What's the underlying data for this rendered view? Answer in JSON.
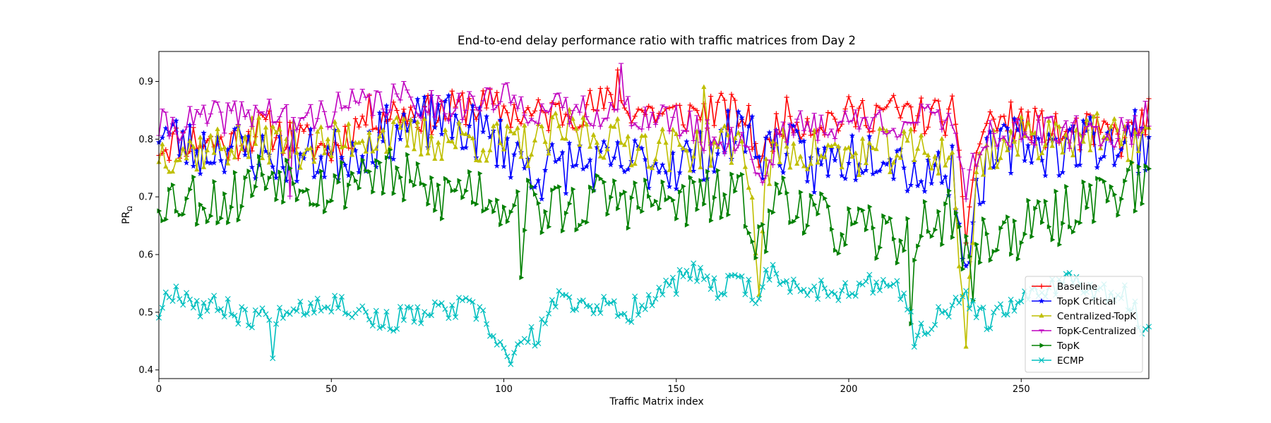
{
  "chart_data": {
    "type": "line",
    "title": "End-to-end delay performance ratio with traffic matrices from Day 2",
    "xlabel": "Traffic Matrix index",
    "ylabel_main": "PR",
    "ylabel_sub": "Ω",
    "xlim": [
      0,
      287
    ],
    "ylim": [
      0.385,
      0.952
    ],
    "xticks": [
      0,
      50,
      100,
      150,
      200,
      250
    ],
    "yticks": [
      0.4,
      0.5,
      0.6,
      0.7,
      0.8,
      0.9
    ],
    "legend_position": "lower right",
    "n_points": 288,
    "series": [
      {
        "name": "Baseline",
        "color": "#ff0000",
        "marker": "plus",
        "anchors": [
          [
            0,
            0.79
          ],
          [
            10,
            0.8
          ],
          [
            20,
            0.79
          ],
          [
            30,
            0.82
          ],
          [
            40,
            0.8
          ],
          [
            50,
            0.78
          ],
          [
            60,
            0.84
          ],
          [
            70,
            0.85
          ],
          [
            80,
            0.84
          ],
          [
            90,
            0.86
          ],
          [
            100,
            0.85
          ],
          [
            110,
            0.84
          ],
          [
            120,
            0.85
          ],
          [
            130,
            0.86
          ],
          [
            140,
            0.85
          ],
          [
            150,
            0.84
          ],
          [
            160,
            0.85
          ],
          [
            170,
            0.84
          ],
          [
            175,
            0.76
          ],
          [
            180,
            0.84
          ],
          [
            190,
            0.83
          ],
          [
            200,
            0.84
          ],
          [
            210,
            0.85
          ],
          [
            220,
            0.84
          ],
          [
            230,
            0.84
          ],
          [
            234,
            0.66
          ],
          [
            238,
            0.8
          ],
          [
            240,
            0.83
          ],
          [
            250,
            0.83
          ],
          [
            260,
            0.81
          ],
          [
            270,
            0.81
          ],
          [
            280,
            0.8
          ],
          [
            287,
            0.84
          ]
        ],
        "noise": 0.035,
        "seed": 11,
        "spikes": [
          [
            133,
            0.92
          ],
          [
            234,
            0.62
          ]
        ]
      },
      {
        "name": "TopK Critical",
        "color": "#0000ff",
        "marker": "star",
        "anchors": [
          [
            0,
            0.82
          ],
          [
            10,
            0.78
          ],
          [
            20,
            0.79
          ],
          [
            30,
            0.77
          ],
          [
            40,
            0.77
          ],
          [
            50,
            0.77
          ],
          [
            60,
            0.79
          ],
          [
            70,
            0.82
          ],
          [
            80,
            0.83
          ],
          [
            90,
            0.82
          ],
          [
            100,
            0.79
          ],
          [
            110,
            0.74
          ],
          [
            120,
            0.76
          ],
          [
            130,
            0.75
          ],
          [
            140,
            0.76
          ],
          [
            150,
            0.76
          ],
          [
            160,
            0.78
          ],
          [
            170,
            0.82
          ],
          [
            175,
            0.78
          ],
          [
            180,
            0.79
          ],
          [
            190,
            0.75
          ],
          [
            200,
            0.77
          ],
          [
            210,
            0.79
          ],
          [
            220,
            0.74
          ],
          [
            230,
            0.75
          ],
          [
            234,
            0.6
          ],
          [
            238,
            0.72
          ],
          [
            240,
            0.76
          ],
          [
            250,
            0.8
          ],
          [
            260,
            0.78
          ],
          [
            270,
            0.8
          ],
          [
            280,
            0.79
          ],
          [
            287,
            0.79
          ]
        ],
        "noise": 0.05,
        "seed": 23,
        "spikes": [
          [
            81,
            0.86
          ],
          [
            234,
            0.58
          ],
          [
            283,
            0.85
          ]
        ]
      },
      {
        "name": "Centralized-TopK",
        "color": "#bfbf00",
        "marker": "triangle-up",
        "anchors": [
          [
            0,
            0.78
          ],
          [
            10,
            0.78
          ],
          [
            20,
            0.79
          ],
          [
            30,
            0.8
          ],
          [
            40,
            0.79
          ],
          [
            50,
            0.79
          ],
          [
            60,
            0.81
          ],
          [
            70,
            0.8
          ],
          [
            80,
            0.8
          ],
          [
            90,
            0.8
          ],
          [
            100,
            0.79
          ],
          [
            110,
            0.79
          ],
          [
            120,
            0.82
          ],
          [
            130,
            0.8
          ],
          [
            140,
            0.79
          ],
          [
            150,
            0.78
          ],
          [
            160,
            0.79
          ],
          [
            170,
            0.79
          ],
          [
            174,
            0.55
          ],
          [
            176,
            0.74
          ],
          [
            180,
            0.78
          ],
          [
            190,
            0.78
          ],
          [
            200,
            0.77
          ],
          [
            210,
            0.78
          ],
          [
            220,
            0.78
          ],
          [
            230,
            0.77
          ],
          [
            234,
            0.44
          ],
          [
            237,
            0.74
          ],
          [
            240,
            0.78
          ],
          [
            250,
            0.8
          ],
          [
            260,
            0.81
          ],
          [
            270,
            0.81
          ],
          [
            280,
            0.79
          ],
          [
            287,
            0.81
          ]
        ],
        "noise": 0.04,
        "seed": 37,
        "spikes": [
          [
            158,
            0.89
          ],
          [
            174,
            0.53
          ],
          [
            234,
            0.44
          ]
        ]
      },
      {
        "name": "TopK-Centralized",
        "color": "#bf00bf",
        "marker": "tri-down",
        "anchors": [
          [
            0,
            0.82
          ],
          [
            10,
            0.83
          ],
          [
            20,
            0.84
          ],
          [
            30,
            0.85
          ],
          [
            40,
            0.83
          ],
          [
            50,
            0.85
          ],
          [
            60,
            0.86
          ],
          [
            70,
            0.87
          ],
          [
            80,
            0.86
          ],
          [
            90,
            0.86
          ],
          [
            100,
            0.87
          ],
          [
            110,
            0.85
          ],
          [
            120,
            0.85
          ],
          [
            130,
            0.85
          ],
          [
            140,
            0.84
          ],
          [
            150,
            0.83
          ],
          [
            160,
            0.8
          ],
          [
            170,
            0.8
          ],
          [
            175,
            0.72
          ],
          [
            180,
            0.82
          ],
          [
            190,
            0.82
          ],
          [
            200,
            0.83
          ],
          [
            210,
            0.83
          ],
          [
            220,
            0.83
          ],
          [
            230,
            0.84
          ],
          [
            234,
            0.72
          ],
          [
            238,
            0.78
          ],
          [
            240,
            0.81
          ],
          [
            250,
            0.81
          ],
          [
            260,
            0.81
          ],
          [
            270,
            0.81
          ],
          [
            280,
            0.81
          ],
          [
            287,
            0.84
          ]
        ],
        "noise": 0.03,
        "seed": 41,
        "spikes": [
          [
            134,
            0.93
          ],
          [
            38,
            0.7
          ]
        ]
      },
      {
        "name": "TopK",
        "color": "#008000",
        "marker": "triangle-right",
        "anchors": [
          [
            0,
            0.7
          ],
          [
            10,
            0.7
          ],
          [
            20,
            0.69
          ],
          [
            30,
            0.74
          ],
          [
            40,
            0.74
          ],
          [
            50,
            0.71
          ],
          [
            60,
            0.75
          ],
          [
            70,
            0.73
          ],
          [
            80,
            0.7
          ],
          [
            90,
            0.72
          ],
          [
            100,
            0.69
          ],
          [
            110,
            0.68
          ],
          [
            120,
            0.68
          ],
          [
            130,
            0.7
          ],
          [
            140,
            0.69
          ],
          [
            150,
            0.69
          ],
          [
            160,
            0.7
          ],
          [
            170,
            0.69
          ],
          [
            175,
            0.61
          ],
          [
            180,
            0.72
          ],
          [
            190,
            0.66
          ],
          [
            200,
            0.64
          ],
          [
            210,
            0.63
          ],
          [
            220,
            0.64
          ],
          [
            230,
            0.67
          ],
          [
            234,
            0.6
          ],
          [
            238,
            0.62
          ],
          [
            240,
            0.63
          ],
          [
            250,
            0.64
          ],
          [
            260,
            0.66
          ],
          [
            270,
            0.7
          ],
          [
            280,
            0.72
          ],
          [
            287,
            0.71
          ]
        ],
        "noise": 0.05,
        "seed": 53,
        "spikes": [
          [
            105,
            0.56
          ],
          [
            218,
            0.48
          ],
          [
            236,
            0.52
          ]
        ]
      },
      {
        "name": "ECMP",
        "color": "#00bfbf",
        "marker": "x",
        "anchors": [
          [
            0,
            0.5
          ],
          [
            3,
            0.54
          ],
          [
            8,
            0.53
          ],
          [
            12,
            0.51
          ],
          [
            20,
            0.51
          ],
          [
            25,
            0.49
          ],
          [
            31,
            0.5
          ],
          [
            33,
            0.44
          ],
          [
            35,
            0.51
          ],
          [
            40,
            0.51
          ],
          [
            50,
            0.52
          ],
          [
            60,
            0.5
          ],
          [
            65,
            0.48
          ],
          [
            70,
            0.49
          ],
          [
            80,
            0.5
          ],
          [
            90,
            0.51
          ],
          [
            95,
            0.48
          ],
          [
            100,
            0.43
          ],
          [
            103,
            0.42
          ],
          [
            106,
            0.45
          ],
          [
            110,
            0.46
          ],
          [
            115,
            0.52
          ],
          [
            120,
            0.52
          ],
          [
            130,
            0.51
          ],
          [
            135,
            0.49
          ],
          [
            140,
            0.52
          ],
          [
            150,
            0.55
          ],
          [
            155,
            0.57
          ],
          [
            160,
            0.54
          ],
          [
            170,
            0.55
          ],
          [
            174,
            0.52
          ],
          [
            176,
            0.58
          ],
          [
            180,
            0.55
          ],
          [
            190,
            0.54
          ],
          [
            200,
            0.54
          ],
          [
            210,
            0.55
          ],
          [
            215,
            0.54
          ],
          [
            220,
            0.46
          ],
          [
            225,
            0.49
          ],
          [
            230,
            0.5
          ],
          [
            234,
            0.53
          ],
          [
            240,
            0.48
          ],
          [
            250,
            0.52
          ],
          [
            260,
            0.55
          ],
          [
            265,
            0.56
          ],
          [
            270,
            0.53
          ],
          [
            280,
            0.53
          ],
          [
            287,
            0.46
          ]
        ],
        "noise": 0.02,
        "seed": 67,
        "spikes": [
          [
            102,
            0.41
          ],
          [
            219,
            0.44
          ]
        ]
      }
    ]
  }
}
